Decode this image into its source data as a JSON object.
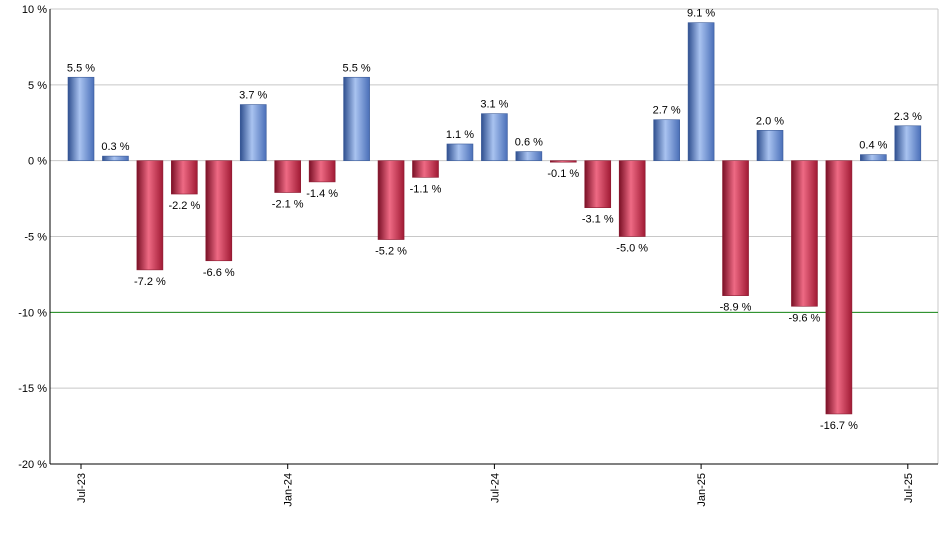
{
  "chart_data": {
    "type": "bar",
    "title": "",
    "xlabel": "",
    "ylabel": "",
    "ylim": [
      -20,
      10
    ],
    "y_ticks": [
      10,
      5,
      0,
      -5,
      -10,
      -15,
      -20
    ],
    "y_tick_labels": [
      "10 %",
      "5 %",
      "0 %",
      "-5 %",
      "-10 %",
      "-15 %",
      "-20 %"
    ],
    "x_tick_labels": [
      {
        "label": "Jul-23",
        "index": 0
      },
      {
        "label": "Jan-24",
        "index": 6
      },
      {
        "label": "Jul-24",
        "index": 12
      },
      {
        "label": "Jan-25",
        "index": 18
      },
      {
        "label": "Jul-25",
        "index": 24
      }
    ],
    "reference_line": {
      "value": -10,
      "color": "#1a8a1a"
    },
    "grid": true,
    "colors": {
      "positive": "#6f93d8",
      "negative": "#c8324e"
    },
    "values": [
      5.5,
      0.3,
      -7.2,
      -2.2,
      -6.6,
      3.7,
      -2.1,
      -1.4,
      5.5,
      -5.2,
      -1.1,
      1.1,
      3.1,
      0.6,
      -0.1,
      -3.1,
      -5.0,
      2.7,
      9.1,
      -8.9,
      2.0,
      -9.6,
      -16.7,
      0.4,
      2.3
    ],
    "data_labels": [
      "5.5 %",
      "0.3 %",
      "-7.2 %",
      "-2.2 %",
      "-6.6 %",
      "3.7 %",
      "-2.1 %",
      "-1.4 %",
      "5.5 %",
      "-5.2 %",
      "-1.1 %",
      "1.1 %",
      "3.1 %",
      "0.6 %",
      "-0.1 %",
      "-3.1 %",
      "-5.0 %",
      "2.7 %",
      "9.1 %",
      "-8.9 %",
      "2.0 %",
      "-9.6 %",
      "-16.7 %",
      "0.4 %",
      "2.3 %"
    ]
  }
}
